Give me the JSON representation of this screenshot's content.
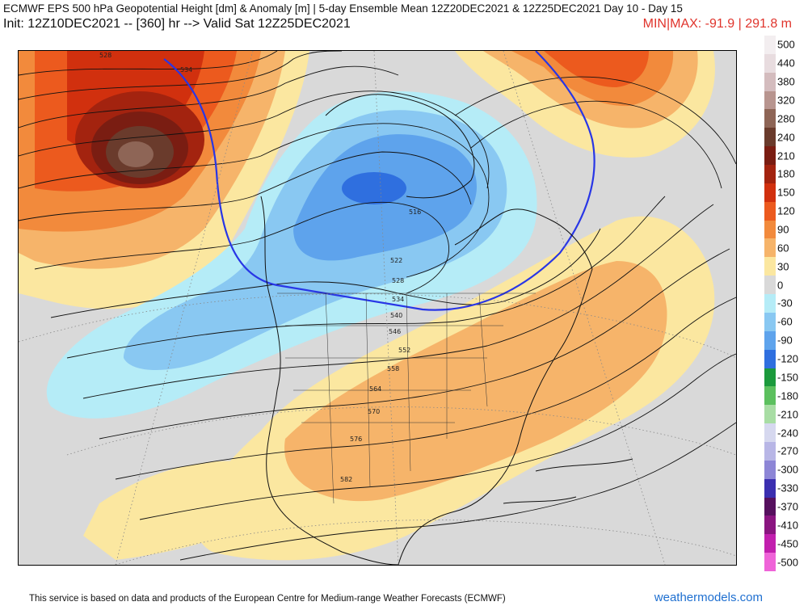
{
  "header": {
    "title": "ECMWF EPS 500 hPa Geopotential Height [dm] & Anomaly [m] | 5-day Ensemble Mean 12Z20DEC2021 & 12Z25DEC2021  Day 10 - Day 15",
    "init": "Init: 12Z10DEC2021 -- [360] hr --> Valid Sat 12Z25DEC2021",
    "minmax": "MIN|MAX: -91.9 | 291.8 m"
  },
  "legend": {
    "items": [
      {
        "label": "500",
        "color": "#f3eef0"
      },
      {
        "label": "440",
        "color": "#e8dcdf"
      },
      {
        "label": "380",
        "color": "#d4bcbe"
      },
      {
        "label": "320",
        "color": "#b8958f"
      },
      {
        "label": "280",
        "color": "#8e6556"
      },
      {
        "label": "240",
        "color": "#6a3b2c"
      },
      {
        "label": "210",
        "color": "#7a1d12"
      },
      {
        "label": "180",
        "color": "#a3230f"
      },
      {
        "label": "150",
        "color": "#d1300e"
      },
      {
        "label": "120",
        "color": "#ec5a1e"
      },
      {
        "label": "90",
        "color": "#f28a3c"
      },
      {
        "label": "60",
        "color": "#f6b46a"
      },
      {
        "label": "30",
        "color": "#fbe7a0"
      },
      {
        "label": "0",
        "color": "#d9d9d9"
      },
      {
        "label": "-30",
        "color": "#b5ecf7"
      },
      {
        "label": "-60",
        "color": "#89c8f2"
      },
      {
        "label": "-90",
        "color": "#5ea3ec"
      },
      {
        "label": "-120",
        "color": "#2f6fdf"
      },
      {
        "label": "-150",
        "color": "#1b9a3c"
      },
      {
        "label": "-180",
        "color": "#5cc05e"
      },
      {
        "label": "-210",
        "color": "#a8dda4"
      },
      {
        "label": "-240",
        "color": "#d6d8ef"
      },
      {
        "label": "-270",
        "color": "#b8b6e6"
      },
      {
        "label": "-300",
        "color": "#8d86d6"
      },
      {
        "label": "-330",
        "color": "#3b2fb0"
      },
      {
        "label": "-370",
        "color": "#56105e"
      },
      {
        "label": "-410",
        "color": "#8a1580"
      },
      {
        "label": "-450",
        "color": "#c21fae"
      },
      {
        "label": "-500",
        "color": "#ef63d8"
      }
    ]
  },
  "map": {
    "contour_labels": [
      {
        "text": "528"
      },
      {
        "text": "534"
      },
      {
        "text": "516"
      },
      {
        "text": "522"
      },
      {
        "text": "528"
      },
      {
        "text": "534"
      },
      {
        "text": "540"
      },
      {
        "text": "546"
      },
      {
        "text": "552"
      },
      {
        "text": "558"
      },
      {
        "text": "564"
      },
      {
        "text": "570"
      },
      {
        "text": "576"
      },
      {
        "text": "582"
      }
    ]
  },
  "footer": {
    "source": "This service is based on data and products of the European Centre for Medium-range Weather Forecasts (ECMWF)",
    "brand": "weathermodels.com"
  }
}
